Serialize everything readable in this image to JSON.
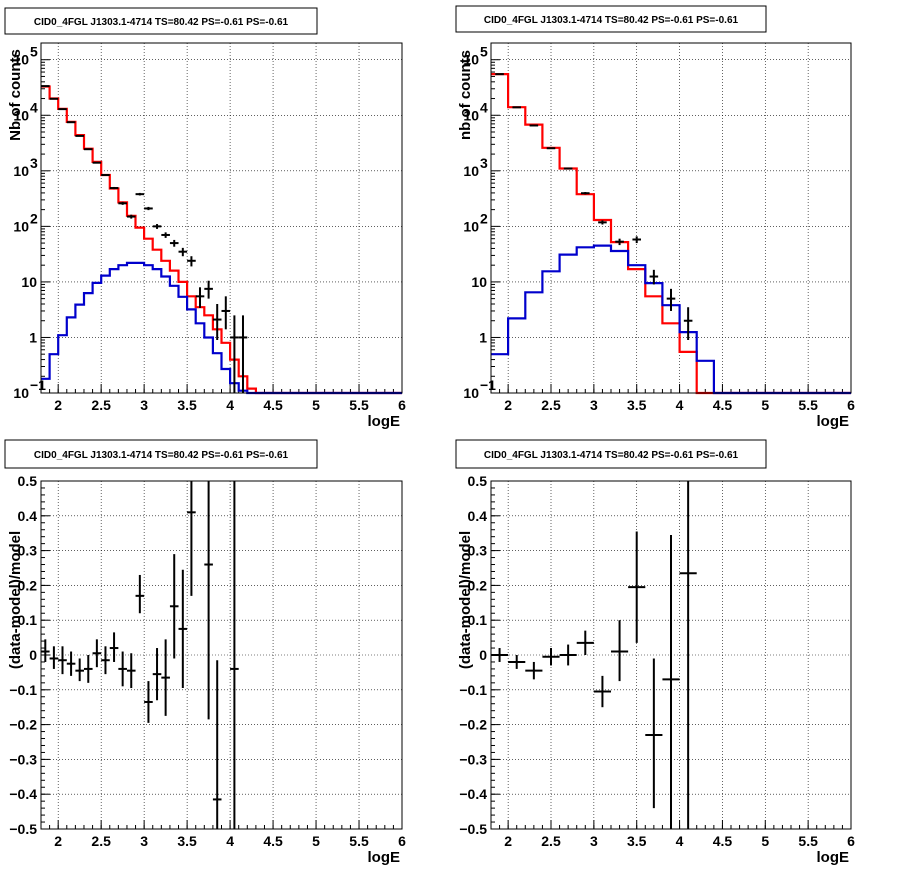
{
  "chart_data": [
    {
      "id": "tl",
      "type": "histogram",
      "title": "CID0_4FGL J1303.1-4714 TS=80.42 PS=-0.61 PS=-0.61",
      "xlabel": "logE",
      "ylabel": "Nb of counts",
      "log_y": true,
      "grid": true,
      "xlim": [
        1.8,
        6
      ],
      "ylim": [
        0.1,
        200000
      ],
      "x_ticks": [
        2,
        2.5,
        3,
        3.5,
        4,
        4.5,
        5,
        5.5,
        6
      ],
      "x_tick_labels": [
        "2",
        "2.5",
        "3",
        "3.5",
        "4",
        "4.5",
        "5",
        "5.5",
        "6"
      ],
      "y_ticks": [
        0.1,
        1,
        10,
        100,
        1000,
        10000,
        100000
      ],
      "y_tick_labels": [
        [
          "10",
          "−1"
        ],
        [
          "1",
          ""
        ],
        [
          "10",
          ""
        ],
        [
          "10",
          "2"
        ],
        [
          "10",
          "3"
        ],
        [
          "10",
          "4"
        ],
        [
          "10",
          "5"
        ]
      ],
      "bin_edges": [
        1.8,
        1.9,
        2.0,
        2.1,
        2.2,
        2.3,
        2.4,
        2.5,
        2.6,
        2.7,
        2.8,
        2.9,
        3.0,
        3.1,
        3.2,
        3.3,
        3.4,
        3.5,
        3.6,
        3.7,
        3.8,
        3.9,
        4.0,
        4.1,
        4.2,
        4.3,
        4.4,
        4.5,
        4.6,
        4.7,
        4.8,
        4.9,
        5.0,
        5.1,
        5.2,
        5.3,
        5.4,
        5.5,
        5.6,
        5.7,
        5.8,
        5.9,
        6.0
      ],
      "series": [
        {
          "role": "model-total",
          "color": "#ff0000",
          "values": [
            33000,
            20000,
            13000,
            7600,
            4400,
            2500,
            1450,
            840,
            480,
            270,
            155,
            95,
            60,
            38,
            24,
            16,
            10,
            5.5,
            3.5,
            2.5,
            1.4,
            0.8,
            0.4,
            0.2,
            0.12,
            0.1,
            0.1,
            0.1,
            0.1,
            0.1,
            0.1,
            0.1,
            0.1,
            0.1,
            0.1,
            0.1,
            0.1,
            0.1,
            0.1,
            0.1,
            0.1,
            0.1
          ]
        },
        {
          "role": "source-model",
          "color": "#0000cc",
          "values": [
            0.18,
            0.5,
            1.1,
            2.3,
            3.9,
            6.3,
            9.6,
            13,
            17,
            20,
            22,
            22,
            20,
            17,
            12.5,
            8.5,
            5.4,
            3.2,
            1.8,
            1.0,
            0.52,
            0.27,
            0.15,
            0.11,
            0.1,
            0.1,
            0.1,
            0.1,
            0.1,
            0.1,
            0.1,
            0.1,
            0.1,
            0.1,
            0.1,
            0.1,
            0.1,
            0.1,
            0.1,
            0.1,
            0.1,
            0.1
          ]
        },
        {
          "role": "data",
          "color": "#000000",
          "points": [
            {
              "x": 1.85,
              "y": 33500,
              "ylo": 33000,
              "yhi": 34000
            },
            {
              "x": 1.95,
              "y": 19800,
              "ylo": 19500,
              "yhi": 20100
            },
            {
              "x": 2.05,
              "y": 12900,
              "ylo": 12700,
              "yhi": 13100
            },
            {
              "x": 2.15,
              "y": 7500,
              "ylo": 7350,
              "yhi": 7650
            },
            {
              "x": 2.25,
              "y": 4250,
              "ylo": 4150,
              "yhi": 4350
            },
            {
              "x": 2.35,
              "y": 2450,
              "ylo": 2400,
              "yhi": 2500
            },
            {
              "x": 2.45,
              "y": 1400,
              "ylo": 1360,
              "yhi": 1440
            },
            {
              "x": 2.55,
              "y": 840,
              "ylo": 810,
              "yhi": 870
            },
            {
              "x": 2.65,
              "y": 490,
              "ylo": 468,
              "yhi": 512
            },
            {
              "x": 2.75,
              "y": 260,
              "ylo": 244,
              "yhi": 276
            },
            {
              "x": 2.85,
              "y": 150,
              "ylo": 138,
              "yhi": 162
            },
            {
              "x": 2.95,
              "y": 380,
              "ylo": 360,
              "yhi": 400
            },
            {
              "x": 3.05,
              "y": 210,
              "ylo": 196,
              "yhi": 224
            },
            {
              "x": 3.15,
              "y": 100,
              "ylo": 90,
              "yhi": 110
            },
            {
              "x": 3.25,
              "y": 70,
              "ylo": 62,
              "yhi": 78
            },
            {
              "x": 3.35,
              "y": 50,
              "ylo": 43,
              "yhi": 57
            },
            {
              "x": 3.45,
              "y": 35,
              "ylo": 29,
              "yhi": 41
            },
            {
              "x": 3.55,
              "y": 24,
              "ylo": 19,
              "yhi": 29
            },
            {
              "x": 3.65,
              "y": 5.5,
              "ylo": 3.4,
              "yhi": 8
            },
            {
              "x": 3.75,
              "y": 7.5,
              "ylo": 5,
              "yhi": 10.5
            },
            {
              "x": 3.85,
              "y": 2.1,
              "ylo": 0.9,
              "yhi": 4
            },
            {
              "x": 3.95,
              "y": 3.0,
              "ylo": 1.4,
              "yhi": 5.5
            },
            {
              "x": 4.05,
              "y": 1.0,
              "ylo": 0.1,
              "yhi": 2.5
            },
            {
              "x": 4.15,
              "y": 1.0,
              "ylo": 0.1,
              "yhi": 2.5
            }
          ]
        }
      ]
    },
    {
      "id": "tr",
      "type": "histogram",
      "title": "CID0_4FGL J1303.1-4714 TS=80.42 PS=-0.61 PS=-0.61",
      "xlabel": "logE",
      "ylabel": "nb of counts",
      "log_y": true,
      "grid": true,
      "xlim": [
        1.8,
        6
      ],
      "ylim": [
        0.1,
        200000
      ],
      "x_ticks": [
        2,
        2.5,
        3,
        3.5,
        4,
        4.5,
        5,
        5.5,
        6
      ],
      "x_tick_labels": [
        "2",
        "2.5",
        "3",
        "3.5",
        "4",
        "4.5",
        "5",
        "5.5",
        "6"
      ],
      "y_ticks": [
        0.1,
        1,
        10,
        100,
        1000,
        10000,
        100000
      ],
      "y_tick_labels": [
        [
          "10",
          "−1"
        ],
        [
          "1",
          ""
        ],
        [
          "10",
          ""
        ],
        [
          "10",
          "2"
        ],
        [
          "10",
          "3"
        ],
        [
          "10",
          "4"
        ],
        [
          "10",
          "5"
        ]
      ],
      "bin_edges": [
        1.8,
        2.0,
        2.2,
        2.4,
        2.6,
        2.8,
        3.0,
        3.2,
        3.4,
        3.6,
        3.8,
        4.0,
        4.2,
        4.4,
        4.6,
        4.8,
        5.0,
        5.2,
        5.4,
        5.6,
        5.8,
        6.0
      ],
      "series": [
        {
          "role": "model-total",
          "color": "#ff0000",
          "values": [
            55000,
            14000,
            6800,
            2600,
            1100,
            380,
            130,
            52,
            17,
            5.5,
            1.8,
            0.55,
            0.1,
            0.1,
            0.1,
            0.1,
            0.1,
            0.1,
            0.1,
            0.1,
            0.1
          ]
        },
        {
          "role": "source-model",
          "color": "#0000cc",
          "values": [
            0.5,
            2.2,
            6.5,
            15.5,
            31,
            42,
            45,
            36,
            20,
            9.5,
            3.8,
            1.25,
            0.38,
            0.1,
            0.1,
            0.1,
            0.1,
            0.1,
            0.1,
            0.1,
            0.1
          ]
        },
        {
          "role": "data",
          "color": "#000000",
          "points": [
            {
              "x": 1.9,
              "y": 55000,
              "ylo": 54600,
              "yhi": 55400
            },
            {
              "x": 2.1,
              "y": 13900,
              "ylo": 13700,
              "yhi": 14100
            },
            {
              "x": 2.3,
              "y": 6550,
              "ylo": 6400,
              "yhi": 6700
            },
            {
              "x": 2.5,
              "y": 2550,
              "ylo": 2480,
              "yhi": 2620
            },
            {
              "x": 2.7,
              "y": 1100,
              "ylo": 1060,
              "yhi": 1140
            },
            {
              "x": 2.9,
              "y": 395,
              "ylo": 375,
              "yhi": 415
            },
            {
              "x": 3.1,
              "y": 118,
              "ylo": 108,
              "yhi": 128
            },
            {
              "x": 3.3,
              "y": 53,
              "ylo": 46,
              "yhi": 60
            },
            {
              "x": 3.5,
              "y": 58,
              "ylo": 50,
              "yhi": 66
            },
            {
              "x": 3.7,
              "y": 12.5,
              "ylo": 9,
              "yhi": 16.5
            },
            {
              "x": 3.9,
              "y": 5,
              "ylo": 3,
              "yhi": 7.5
            },
            {
              "x": 4.1,
              "y": 2,
              "ylo": 0.9,
              "yhi": 3.5
            }
          ]
        }
      ]
    },
    {
      "id": "bl",
      "type": "residual",
      "title": "CID0_4FGL J1303.1-4714 TS=80.42 PS=-0.61 PS=-0.61",
      "xlabel": "logE",
      "ylabel": "(data-model)/model",
      "grid": true,
      "xlim": [
        1.8,
        6
      ],
      "ylim": [
        -0.5,
        0.5
      ],
      "x_ticks": [
        2,
        2.5,
        3,
        3.5,
        4,
        4.5,
        5,
        5.5,
        6
      ],
      "x_tick_labels": [
        "2",
        "2.5",
        "3",
        "3.5",
        "4",
        "4.5",
        "5",
        "5.5",
        "6"
      ],
      "y_ticks": [
        -0.5,
        -0.4,
        -0.3,
        -0.2,
        -0.1,
        0,
        0.1,
        0.2,
        0.3,
        0.4,
        0.5
      ],
      "y_tick_labels": [
        "−0.5",
        "−0.4",
        "−0.3",
        "−0.2",
        "−0.1",
        "0",
        "0.1",
        "0.2",
        "0.3",
        "0.4",
        "0.5"
      ],
      "points": [
        {
          "x": 1.85,
          "y": 0.01,
          "ylo": -0.02,
          "yhi": 0.045,
          "xw": 0.05
        },
        {
          "x": 1.95,
          "y": -0.01,
          "ylo": -0.04,
          "yhi": 0.025,
          "xw": 0.05
        },
        {
          "x": 2.05,
          "y": -0.015,
          "ylo": -0.055,
          "yhi": 0.025,
          "xw": 0.05
        },
        {
          "x": 2.15,
          "y": -0.025,
          "ylo": -0.06,
          "yhi": 0.01,
          "xw": 0.05
        },
        {
          "x": 2.25,
          "y": -0.045,
          "ylo": -0.075,
          "yhi": -0.01,
          "xw": 0.05
        },
        {
          "x": 2.35,
          "y": -0.04,
          "ylo": -0.08,
          "yhi": 0.0,
          "xw": 0.05
        },
        {
          "x": 2.45,
          "y": 0.005,
          "ylo": -0.035,
          "yhi": 0.045,
          "xw": 0.05
        },
        {
          "x": 2.55,
          "y": -0.015,
          "ylo": -0.055,
          "yhi": 0.025,
          "xw": 0.05
        },
        {
          "x": 2.65,
          "y": 0.02,
          "ylo": -0.02,
          "yhi": 0.065,
          "xw": 0.05
        },
        {
          "x": 2.75,
          "y": -0.04,
          "ylo": -0.09,
          "yhi": 0.01,
          "xw": 0.05
        },
        {
          "x": 2.85,
          "y": -0.045,
          "ylo": -0.095,
          "yhi": 0.005,
          "xw": 0.05
        },
        {
          "x": 2.95,
          "y": 0.17,
          "ylo": 0.12,
          "yhi": 0.23,
          "xw": 0.05
        },
        {
          "x": 3.05,
          "y": -0.135,
          "ylo": -0.195,
          "yhi": -0.075,
          "xw": 0.05
        },
        {
          "x": 3.15,
          "y": -0.055,
          "ylo": -0.13,
          "yhi": 0.02,
          "xw": 0.05
        },
        {
          "x": 3.25,
          "y": -0.065,
          "ylo": -0.175,
          "yhi": 0.045,
          "xw": 0.05
        },
        {
          "x": 3.35,
          "y": 0.14,
          "ylo": -0.01,
          "yhi": 0.29,
          "xw": 0.05
        },
        {
          "x": 3.45,
          "y": 0.075,
          "ylo": -0.095,
          "yhi": 0.245,
          "xw": 0.05
        },
        {
          "x": 3.55,
          "y": 0.41,
          "ylo": 0.17,
          "yhi": 0.5,
          "xw": 0.05
        },
        {
          "x": 3.75,
          "y": 0.26,
          "ylo": -0.185,
          "yhi": 0.5,
          "xw": 0.05
        },
        {
          "x": 3.85,
          "y": -0.415,
          "ylo": -0.5,
          "yhi": -0.015,
          "xw": 0.05
        },
        {
          "x": 4.05,
          "y": -0.04,
          "ylo": -0.5,
          "yhi": 0.5,
          "xw": 0.05
        }
      ]
    },
    {
      "id": "br",
      "type": "residual",
      "title": "CID0_4FGL J1303.1-4714 TS=80.42 PS=-0.61 PS=-0.61",
      "xlabel": "logE",
      "ylabel": "(data-model)/model",
      "grid": true,
      "xlim": [
        1.8,
        6
      ],
      "ylim": [
        -0.5,
        0.5
      ],
      "x_ticks": [
        2,
        2.5,
        3,
        3.5,
        4,
        4.5,
        5,
        5.5,
        6
      ],
      "x_tick_labels": [
        "2",
        "2.5",
        "3",
        "3.5",
        "4",
        "4.5",
        "5",
        "5.5",
        "6"
      ],
      "y_ticks": [
        -0.5,
        -0.4,
        -0.3,
        -0.2,
        -0.1,
        0,
        0.1,
        0.2,
        0.3,
        0.4,
        0.5
      ],
      "y_tick_labels": [
        "−0.5",
        "−0.4",
        "−0.3",
        "−0.2",
        "−0.1",
        "0",
        "0.1",
        "0.2",
        "0.3",
        "0.4",
        "0.5"
      ],
      "points": [
        {
          "x": 1.9,
          "y": 0.0,
          "ylo": -0.02,
          "yhi": 0.02,
          "xw": 0.1
        },
        {
          "x": 2.1,
          "y": -0.02,
          "ylo": -0.04,
          "yhi": 0.0,
          "xw": 0.1
        },
        {
          "x": 2.3,
          "y": -0.045,
          "ylo": -0.07,
          "yhi": -0.02,
          "xw": 0.1
        },
        {
          "x": 2.5,
          "y": -0.005,
          "ylo": -0.03,
          "yhi": 0.02,
          "xw": 0.1
        },
        {
          "x": 2.7,
          "y": 0.0,
          "ylo": -0.03,
          "yhi": 0.03,
          "xw": 0.1
        },
        {
          "x": 2.9,
          "y": 0.035,
          "ylo": 0.0,
          "yhi": 0.07,
          "xw": 0.1
        },
        {
          "x": 3.1,
          "y": -0.105,
          "ylo": -0.15,
          "yhi": -0.06,
          "xw": 0.1
        },
        {
          "x": 3.3,
          "y": 0.01,
          "ylo": -0.075,
          "yhi": 0.1,
          "xw": 0.1
        },
        {
          "x": 3.5,
          "y": 0.195,
          "ylo": 0.035,
          "yhi": 0.355,
          "xw": 0.1
        },
        {
          "x": 3.7,
          "y": -0.23,
          "ylo": -0.44,
          "yhi": -0.01,
          "xw": 0.1
        },
        {
          "x": 3.9,
          "y": -0.07,
          "ylo": -0.5,
          "yhi": 0.345,
          "xw": 0.1
        },
        {
          "x": 4.1,
          "y": 0.235,
          "ylo": -0.5,
          "yhi": 0.5,
          "xw": 0.1
        }
      ]
    }
  ]
}
